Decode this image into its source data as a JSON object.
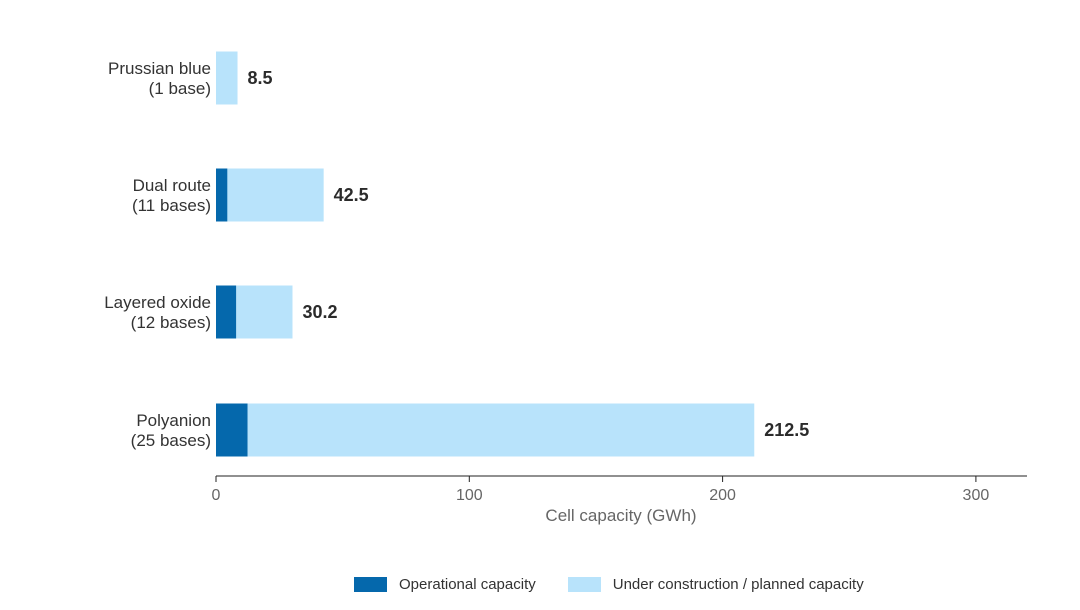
{
  "chart_data": {
    "type": "bar",
    "orientation": "horizontal",
    "stacked": true,
    "categories": [
      [
        "Prussian blue",
        "(1 base)"
      ],
      [
        "Dual route",
        "(11 bases)"
      ],
      [
        "Layered oxide",
        "(12 bases)"
      ],
      [
        "Polyanion",
        "(25 bases)"
      ]
    ],
    "series": [
      {
        "name": "Operational capacity",
        "color": "#0568ac",
        "values": [
          0,
          4.5,
          8.0,
          12.5
        ]
      },
      {
        "name": "Under construction / planned capacity",
        "color": "#b8e3fb",
        "values": [
          8.5,
          38.0,
          22.2,
          200.0
        ]
      }
    ],
    "totals": [
      "8.5",
      "42.5",
      "30.2",
      "212.5"
    ],
    "xlabel": "Cell capacity (GWh)",
    "xlim": [
      0,
      320
    ],
    "xticks": [
      0,
      100,
      200,
      300
    ],
    "grid": false,
    "legend_position": "bottom"
  }
}
